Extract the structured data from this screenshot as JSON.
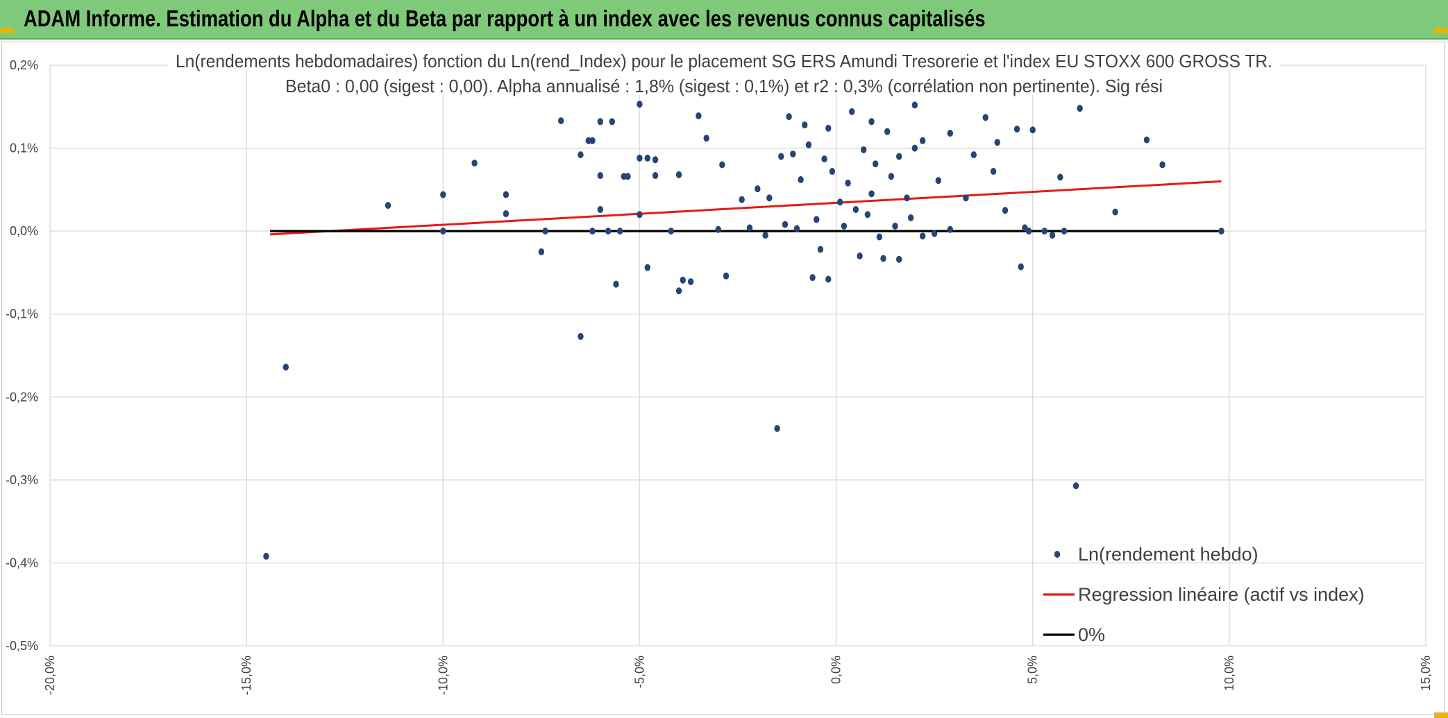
{
  "banner": {
    "title": "ADAM Informe. Estimation du Alpha et du Beta par rapport à un index avec les revenus connus capitalisés",
    "color": "#7ec97a"
  },
  "chart_data": {
    "type": "scatter",
    "title": "Ln(rendements hebdomadaires) fonction du Ln(rend_Index) pour le placement SG ERS Amundi Tresorerie  et l'index EU STOXX 600 GROSS TR.",
    "subtitle": "Beta0 : 0,00 (sigest : 0,00). Alpha annualisé : 1,8% (sigest : 0,1%) et r2 : 0,3% (corrélation non pertinente). Sig rési",
    "xlabel": "",
    "ylabel": "",
    "xlim": [
      -20,
      15
    ],
    "ylim": [
      -0.5,
      0.2
    ],
    "x_unit": "%",
    "y_unit": "%",
    "x_ticks": [
      "-20,0%",
      "-15,0%",
      "-10,0%",
      "-5,0%",
      "0,0%",
      "5,0%",
      "10,0%",
      "15,0%"
    ],
    "y_ticks": [
      "0,2%",
      "0,1%",
      "0,0%",
      "-0,1%",
      "-0,2%",
      "-0,3%",
      "-0,4%",
      "-0,5%"
    ],
    "grid": true,
    "legend_position": "bottom-right",
    "series": [
      {
        "name": "Ln(rendement hebdo)",
        "kind": "scatter",
        "color": "#264478",
        "points": [
          [
            -14.5,
            -0.392
          ],
          [
            -14.0,
            -0.164
          ],
          [
            -11.4,
            0.031
          ],
          [
            -10.0,
            0.044
          ],
          [
            -10.0,
            0.0
          ],
          [
            -9.2,
            0.082
          ],
          [
            -8.4,
            0.044
          ],
          [
            -8.4,
            0.021
          ],
          [
            -7.5,
            -0.025
          ],
          [
            -7.4,
            0.0
          ],
          [
            -7.0,
            0.133
          ],
          [
            -6.5,
            0.092
          ],
          [
            -6.5,
            -0.127
          ],
          [
            -6.3,
            0.109
          ],
          [
            -6.2,
            0.109
          ],
          [
            -6.2,
            0.0
          ],
          [
            -6.0,
            0.132
          ],
          [
            -6.0,
            0.067
          ],
          [
            -6.0,
            0.026
          ],
          [
            -5.8,
            0.0
          ],
          [
            -5.7,
            0.132
          ],
          [
            -5.6,
            -0.064
          ],
          [
            -5.5,
            0.0
          ],
          [
            -5.4,
            0.066
          ],
          [
            -5.3,
            0.066
          ],
          [
            -5.0,
            0.153
          ],
          [
            -5.0,
            0.088
          ],
          [
            -5.0,
            0.02
          ],
          [
            -4.8,
            0.088
          ],
          [
            -4.6,
            0.067
          ],
          [
            -4.6,
            0.086
          ],
          [
            -4.8,
            -0.044
          ],
          [
            -4.2,
            0.0
          ],
          [
            -4.0,
            0.068
          ],
          [
            -4.0,
            -0.072
          ],
          [
            -3.9,
            -0.059
          ],
          [
            -3.7,
            -0.061
          ],
          [
            -3.5,
            0.139
          ],
          [
            -3.3,
            0.112
          ],
          [
            -2.8,
            -0.054
          ],
          [
            -1.5,
            -0.238
          ],
          [
            6.1,
            -0.307
          ],
          [
            6.2,
            0.148
          ],
          [
            7.9,
            0.11
          ],
          [
            8.3,
            0.08
          ],
          [
            7.1,
            0.023
          ],
          [
            5.7,
            0.065
          ],
          [
            5.0,
            0.122
          ],
          [
            4.7,
            -0.043
          ],
          [
            5.5,
            -0.005
          ],
          [
            4.9,
            0.0
          ],
          [
            5.3,
            0.0
          ],
          [
            5.8,
            0.0
          ],
          [
            9.8,
            0.0
          ],
          [
            4.8,
            0.004
          ],
          [
            2.0,
            0.152
          ],
          [
            2.2,
            0.109
          ],
          [
            2.9,
            0.118
          ],
          [
            3.8,
            0.137
          ],
          [
            4.1,
            0.107
          ],
          [
            4.6,
            0.123
          ],
          [
            3.5,
            0.092
          ],
          [
            4.3,
            0.025
          ],
          [
            2.5,
            -0.003
          ],
          [
            1.9,
            0.016
          ],
          [
            1.2,
            -0.033
          ],
          [
            -0.2,
            -0.058
          ],
          [
            -0.6,
            -0.056
          ],
          [
            1.6,
            -0.034
          ],
          [
            2.0,
            0.1
          ],
          [
            1.6,
            0.09
          ],
          [
            -0.4,
            -0.022
          ],
          [
            2.2,
            -0.006
          ],
          [
            2.9,
            0.002
          ],
          [
            3.3,
            0.04
          ],
          [
            4.0,
            0.072
          ],
          [
            0.6,
            -0.03
          ],
          [
            -2.4,
            0.038
          ],
          [
            -2.9,
            0.08
          ],
          [
            -1.2,
            0.138
          ],
          [
            -0.8,
            0.128
          ],
          [
            0.4,
            0.144
          ],
          [
            0.9,
            0.132
          ],
          [
            1.3,
            0.12
          ],
          [
            -1.8,
            -0.005
          ],
          [
            -3.0,
            0.002
          ],
          [
            -2.2,
            0.004
          ],
          [
            -1.0,
            0.003
          ],
          [
            0.2,
            0.006
          ],
          [
            1.1,
            -0.007
          ],
          [
            -0.9,
            0.062
          ],
          [
            -1.1,
            0.093
          ],
          [
            0.7,
            0.098
          ],
          [
            1.0,
            0.081
          ],
          [
            0.3,
            0.058
          ],
          [
            -0.3,
            0.087
          ],
          [
            1.4,
            0.066
          ],
          [
            1.8,
            0.04
          ],
          [
            -0.5,
            0.014
          ],
          [
            0.1,
            0.035
          ],
          [
            -1.4,
            0.09
          ],
          [
            -2.0,
            0.051
          ],
          [
            0.5,
            0.026
          ],
          [
            -0.1,
            0.072
          ],
          [
            0.9,
            0.045
          ],
          [
            1.5,
            0.006
          ],
          [
            -1.3,
            0.008
          ],
          [
            2.6,
            0.061
          ],
          [
            -0.7,
            0.104
          ],
          [
            -0.2,
            0.124
          ],
          [
            0.8,
            0.02
          ],
          [
            -1.7,
            0.04
          ]
        ]
      },
      {
        "name": "Regression linéaire (actif vs index)",
        "kind": "line",
        "color": "#e41a1a",
        "points": [
          [
            -14.4,
            -0.004
          ],
          [
            9.8,
            0.06
          ]
        ]
      },
      {
        "name": "0%",
        "kind": "line",
        "color": "#000000",
        "points": [
          [
            -14.4,
            0.0
          ],
          [
            9.8,
            0.0
          ]
        ]
      }
    ]
  }
}
